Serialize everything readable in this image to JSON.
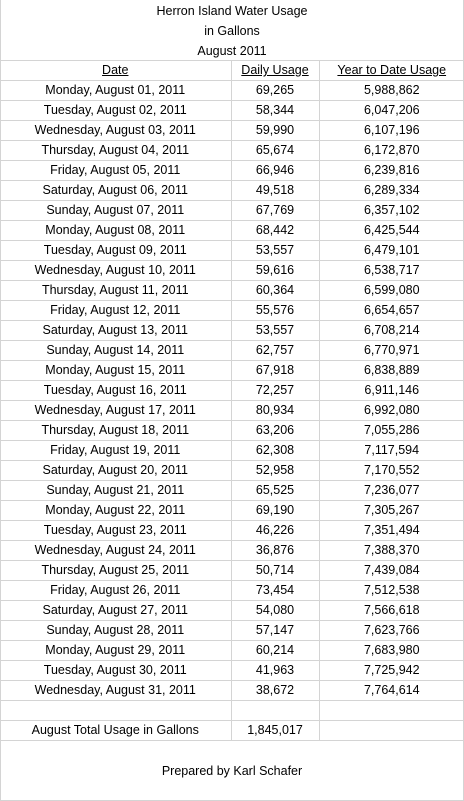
{
  "title": {
    "line1": "Herron Island Water Usage",
    "line2": "in Gallons",
    "line3": "August 2011"
  },
  "table": {
    "headers": [
      "Date",
      "Daily Usage",
      "Year to Date Usage"
    ],
    "rows": [
      [
        "Monday, August 01, 2011",
        "69,265",
        "5,988,862"
      ],
      [
        "Tuesday, August 02, 2011",
        "58,344",
        "6,047,206"
      ],
      [
        "Wednesday, August 03, 2011",
        "59,990",
        "6,107,196"
      ],
      [
        "Thursday, August 04, 2011",
        "65,674",
        "6,172,870"
      ],
      [
        "Friday, August 05, 2011",
        "66,946",
        "6,239,816"
      ],
      [
        "Saturday, August 06, 2011",
        "49,518",
        "6,289,334"
      ],
      [
        "Sunday, August 07, 2011",
        "67,769",
        "6,357,102"
      ],
      [
        "Monday, August 08, 2011",
        "68,442",
        "6,425,544"
      ],
      [
        "Tuesday, August 09, 2011",
        "53,557",
        "6,479,101"
      ],
      [
        "Wednesday, August 10, 2011",
        "59,616",
        "6,538,717"
      ],
      [
        "Thursday, August 11, 2011",
        "60,364",
        "6,599,080"
      ],
      [
        "Friday, August 12, 2011",
        "55,576",
        "6,654,657"
      ],
      [
        "Saturday, August 13, 2011",
        "53,557",
        "6,708,214"
      ],
      [
        "Sunday, August 14, 2011",
        "62,757",
        "6,770,971"
      ],
      [
        "Monday, August 15, 2011",
        "67,918",
        "6,838,889"
      ],
      [
        "Tuesday, August 16, 2011",
        "72,257",
        "6,911,146"
      ],
      [
        "Wednesday, August 17, 2011",
        "80,934",
        "6,992,080"
      ],
      [
        "Thursday, August 18, 2011",
        "63,206",
        "7,055,286"
      ],
      [
        "Friday, August 19, 2011",
        "62,308",
        "7,117,594"
      ],
      [
        "Saturday, August 20, 2011",
        "52,958",
        "7,170,552"
      ],
      [
        "Sunday, August 21, 2011",
        "65,525",
        "7,236,077"
      ],
      [
        "Monday, August 22, 2011",
        "69,190",
        "7,305,267"
      ],
      [
        "Tuesday, August 23, 2011",
        "46,226",
        "7,351,494"
      ],
      [
        "Wednesday, August 24, 2011",
        "36,876",
        "7,388,370"
      ],
      [
        "Thursday, August 25, 2011",
        "50,714",
        "7,439,084"
      ],
      [
        "Friday, August 26, 2011",
        "73,454",
        "7,512,538"
      ],
      [
        "Saturday, August 27, 2011",
        "54,080",
        "7,566,618"
      ],
      [
        "Sunday, August 28, 2011",
        "57,147",
        "7,623,766"
      ],
      [
        "Monday, August 29, 2011",
        "60,214",
        "7,683,980"
      ],
      [
        "Tuesday, August 30, 2011",
        "41,963",
        "7,725,942"
      ],
      [
        "Wednesday, August 31, 2011",
        "38,672",
        "7,764,614"
      ]
    ],
    "total_label": "August Total Usage in Gallons",
    "total_value": "1,845,017"
  },
  "footer": {
    "prepared_by": "Prepared by Karl Schafer"
  },
  "colors": {
    "gridline": "#d4d4d4",
    "text": "#000000",
    "background": "#ffffff"
  }
}
